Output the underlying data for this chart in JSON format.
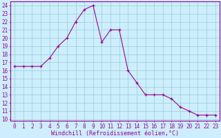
{
  "x": [
    0,
    1,
    2,
    3,
    4,
    5,
    6,
    7,
    8,
    9,
    10,
    11,
    12,
    13,
    14,
    15,
    16,
    17,
    18,
    19,
    20,
    21,
    22,
    23
  ],
  "y": [
    16.5,
    16.5,
    16.5,
    16.5,
    17.5,
    19.0,
    20.0,
    22.0,
    23.5,
    24.0,
    19.5,
    21.0,
    21.0,
    16.0,
    14.5,
    13.0,
    13.0,
    13.0,
    12.5,
    11.5,
    11.0,
    10.5,
    10.5,
    10.5
  ],
  "line_color": "#990099",
  "marker": "+",
  "bg_color": "#cceeff",
  "grid_color": "#99cccc",
  "xlabel": "Windchill (Refroidissement éolien,°C)",
  "xlabel_color": "#990099",
  "ylabel_ticks": [
    10,
    11,
    12,
    13,
    14,
    15,
    16,
    17,
    18,
    19,
    20,
    21,
    22,
    23,
    24
  ],
  "xlim": [
    -0.5,
    23.5
  ],
  "ylim": [
    9.8,
    24.5
  ],
  "tick_label_color": "#990099",
  "axis_label_fontsize": 6,
  "tick_fontsize": 5.5,
  "border_color": "#990099"
}
